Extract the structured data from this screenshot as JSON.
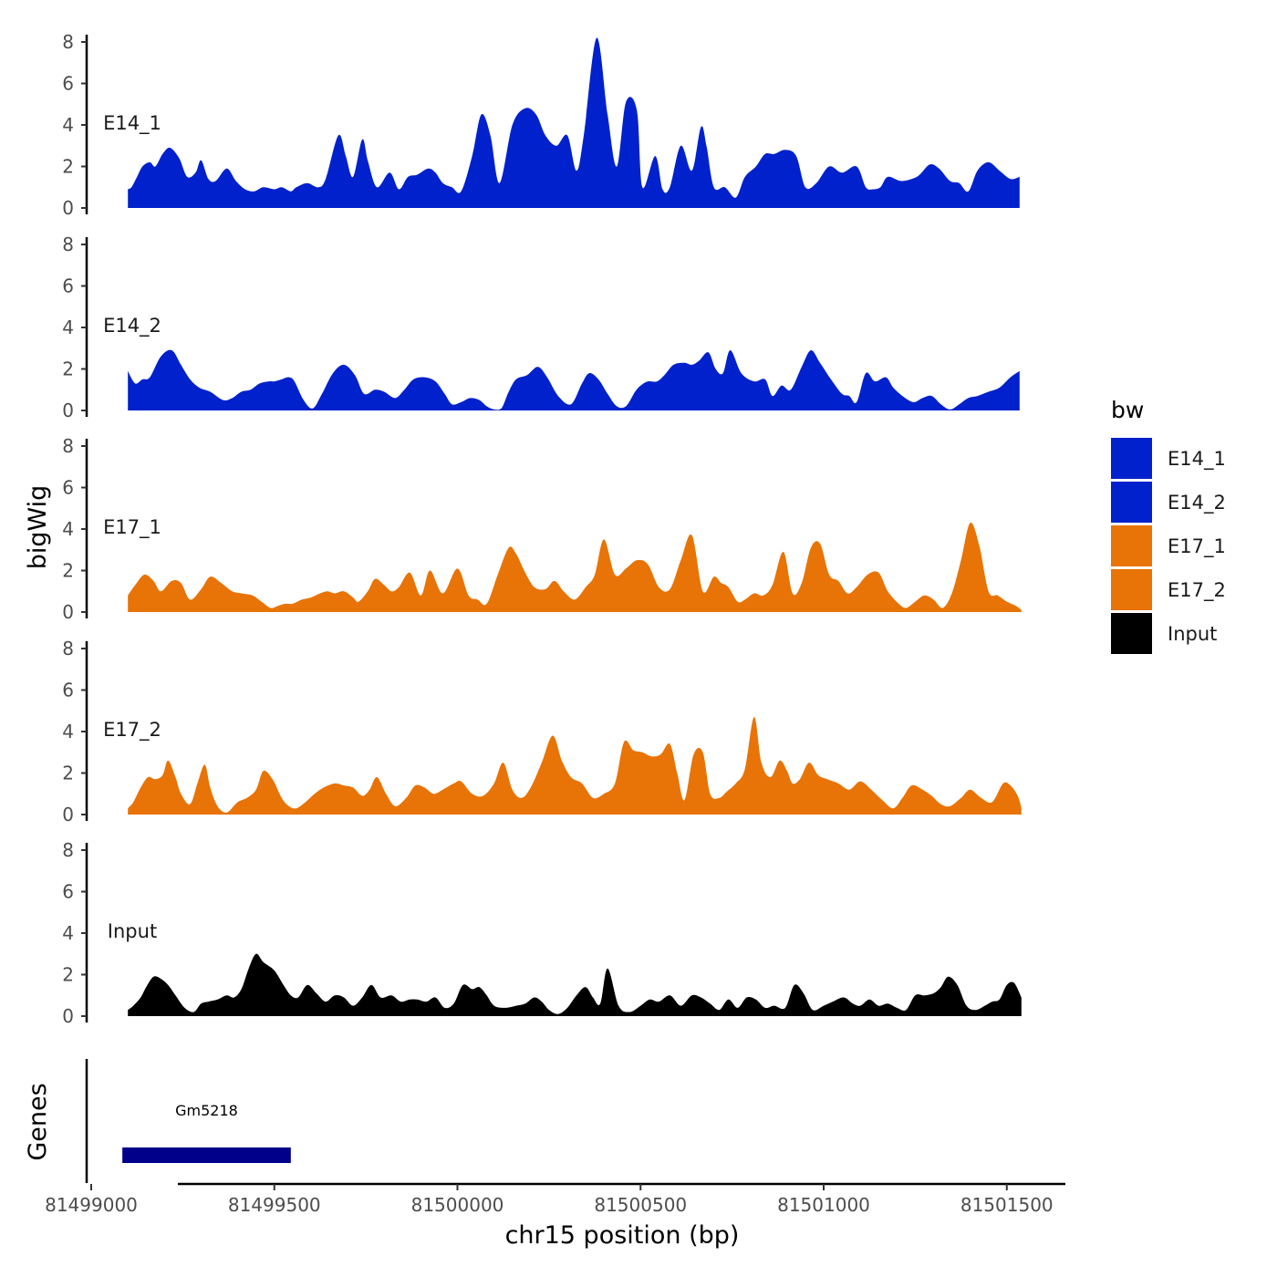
{
  "chart_data": {
    "type": "area",
    "ylabel": "bigWig",
    "xlabel": "chr15 position (bp)",
    "ylim": [
      0,
      8
    ],
    "yticks": [
      0,
      2,
      4,
      6,
      8
    ],
    "xlim": [
      81498990,
      81501660
    ],
    "xticks": [
      81499000,
      81499500,
      81500000,
      81500500,
      81501000,
      81501500
    ],
    "xtick_labels": [
      "81499000",
      "81499500",
      "81500000",
      "81500500",
      "81501000",
      "81501500"
    ],
    "legend": {
      "title": "bw",
      "position": "right",
      "entries": [
        {
          "label": "E14_1",
          "color": "#0021CC"
        },
        {
          "label": "E14_2",
          "color": "#0021CC"
        },
        {
          "label": "E17_1",
          "color": "#E87306"
        },
        {
          "label": "E17_2",
          "color": "#E87306"
        },
        {
          "label": "Input",
          "color": "#000000"
        }
      ]
    },
    "tracks": [
      {
        "name": "E14_1",
        "color": "#0021CC",
        "x": [
          81499100,
          81499110,
          81499125,
          81499140,
          81499160,
          81499175,
          81499195,
          81499215,
          81499240,
          81499262,
          81499285,
          81499300,
          81499320,
          81499340,
          81499370,
          81499395,
          81499420,
          81499445,
          81499470,
          81499500,
          81499520,
          81499545,
          81499560,
          81499590,
          81499620,
          81499640,
          81499675,
          81499695,
          81499715,
          81499740,
          81499755,
          81499780,
          81499815,
          81499840,
          81499865,
          81499890,
          81499920,
          81499940,
          81499960,
          81499985,
          81500010,
          81500040,
          81500065,
          81500090,
          81500115,
          81500150,
          81500185,
          81500215,
          81500240,
          81500270,
          81500300,
          81500325,
          81500345,
          81500380,
          81500410,
          81500435,
          81500460,
          81500490,
          81500505,
          81500540,
          81500560,
          81500580,
          81500610,
          81500640,
          81500665,
          81500680,
          81500700,
          81500730,
          81500760,
          81500785,
          81500815,
          81500840,
          81500865,
          81500895,
          81500925,
          81500950,
          81500980,
          81501015,
          81501050,
          81501090,
          81501115,
          81501135,
          81501155,
          81501175,
          81501210,
          81501240,
          81501262,
          81501290,
          81501315,
          81501345,
          81501370,
          81501395,
          81501420,
          81501450,
          81501480,
          81501510,
          81501535
        ],
        "values": [
          0.9,
          1.0,
          1.5,
          2.0,
          2.2,
          2.0,
          2.6,
          2.9,
          2.4,
          1.5,
          1.7,
          2.3,
          1.4,
          1.3,
          1.9,
          1.3,
          0.9,
          0.8,
          1.0,
          0.9,
          1.0,
          0.8,
          1.0,
          1.2,
          1.0,
          1.4,
          3.5,
          2.5,
          1.5,
          3.3,
          2.3,
          1.0,
          1.7,
          0.9,
          1.5,
          1.6,
          1.9,
          1.7,
          1.2,
          1.0,
          0.8,
          2.5,
          4.5,
          3.5,
          1.2,
          4.0,
          4.8,
          4.5,
          3.5,
          3.0,
          3.5,
          1.8,
          3.5,
          8.2,
          4.5,
          2.0,
          5.1,
          4.7,
          1.0,
          2.5,
          0.9,
          1.0,
          3.0,
          1.8,
          3.9,
          3.0,
          1.0,
          1.0,
          0.5,
          1.5,
          2.0,
          2.6,
          2.6,
          2.8,
          2.5,
          1.0,
          1.2,
          2.0,
          1.7,
          2.0,
          1.0,
          0.9,
          1.0,
          1.5,
          1.3,
          1.4,
          1.6,
          2.1,
          1.9,
          1.3,
          1.2,
          0.8,
          1.8,
          2.2,
          1.8,
          1.4,
          1.5
        ]
      },
      {
        "name": "E14_2",
        "color": "#0021CC",
        "x": [
          81499100,
          81499120,
          81499140,
          81499160,
          81499190,
          81499220,
          81499245,
          81499270,
          81499295,
          81499325,
          81499360,
          81499385,
          81499410,
          81499435,
          81499460,
          81499485,
          81499500,
          81499520,
          81499540,
          81499555,
          81499580,
          81499605,
          81499630,
          81499660,
          81499690,
          81499720,
          81499745,
          81499775,
          81499800,
          81499830,
          81499855,
          81499880,
          81499910,
          81499940,
          81499965,
          81499985,
          81500010,
          81500035,
          81500060,
          81500080,
          81500100,
          81500120,
          81500140,
          81500160,
          81500190,
          81500220,
          81500245,
          81500275,
          81500310,
          81500340,
          81500360,
          81500385,
          81500410,
          81500435,
          81500460,
          81500485,
          81500500,
          81500520,
          81500545,
          81500565,
          81500590,
          81500620,
          81500640,
          81500660,
          81500685,
          81500705,
          81500725,
          81500745,
          81500775,
          81500810,
          81500840,
          81500860,
          81500885,
          81500910,
          81500940,
          81500965,
          81500990,
          81501020,
          81501050,
          81501070,
          81501090,
          81501115,
          81501140,
          81501170,
          81501190,
          81501215,
          81501245,
          81501270,
          81501295,
          81501320,
          81501345,
          81501370,
          81501395,
          81501420,
          81501450,
          81501480,
          81501510,
          81501535
        ],
        "values": [
          1.9,
          1.3,
          1.5,
          1.6,
          2.6,
          2.9,
          2.2,
          1.5,
          1.1,
          0.9,
          0.5,
          0.6,
          0.9,
          1.0,
          1.3,
          1.4,
          1.4,
          1.5,
          1.6,
          1.4,
          0.5,
          0.1,
          0.8,
          1.8,
          2.2,
          1.7,
          0.8,
          1.0,
          0.9,
          0.6,
          1.0,
          1.5,
          1.6,
          1.4,
          0.8,
          0.3,
          0.4,
          0.6,
          0.5,
          0.2,
          0.05,
          0.1,
          0.9,
          1.5,
          1.7,
          2.1,
          1.6,
          0.7,
          0.3,
          1.3,
          1.8,
          1.5,
          0.8,
          0.2,
          0.2,
          0.9,
          1.2,
          1.4,
          1.4,
          1.7,
          2.2,
          2.3,
          2.2,
          2.4,
          2.8,
          2.0,
          1.8,
          2.9,
          1.8,
          1.4,
          1.5,
          0.7,
          1.2,
          1.0,
          2.1,
          2.9,
          2.3,
          1.5,
          0.8,
          0.7,
          0.4,
          1.8,
          1.4,
          1.6,
          1.1,
          0.7,
          0.4,
          0.6,
          0.7,
          0.3,
          0.05,
          0.3,
          0.6,
          0.7,
          0.9,
          1.1,
          1.6,
          1.9
        ]
      },
      {
        "name": "E17_1",
        "color": "#E87306",
        "x": [
          81499100,
          81499120,
          81499145,
          81499170,
          81499190,
          81499220,
          81499245,
          81499270,
          81499300,
          81499325,
          81499355,
          81499385,
          81499410,
          81499440,
          81499465,
          81499490,
          81499510,
          81499530,
          81499550,
          81499575,
          81499600,
          81499625,
          81499645,
          81499665,
          81499690,
          81499715,
          81499730,
          81499755,
          81499775,
          81499800,
          81499820,
          81499840,
          81499870,
          81499900,
          81499925,
          81499960,
          81500000,
          81500030,
          81500055,
          81500080,
          81500110,
          81500140,
          81500160,
          81500185,
          81500210,
          81500240,
          81500265,
          81500290,
          81500320,
          81500350,
          81500375,
          81500400,
          81500430,
          81500460,
          81500490,
          81500520,
          81500550,
          81500580,
          81500610,
          81500640,
          81500670,
          81500700,
          81500720,
          81500740,
          81500765,
          81500785,
          81500810,
          81500835,
          81500860,
          81500890,
          81500915,
          81500940,
          81500965,
          81500990,
          81501015,
          81501040,
          81501065,
          81501090,
          81501120,
          81501150,
          81501175,
          81501205,
          81501225,
          81501250,
          81501275,
          81501300,
          81501325,
          81501350,
          81501375,
          81501400,
          81501425,
          81501450,
          81501475,
          81501500,
          81501525,
          81501540
        ],
        "values": [
          0.8,
          1.3,
          1.8,
          1.5,
          1.0,
          1.5,
          1.4,
          0.6,
          1.1,
          1.7,
          1.4,
          1.0,
          0.9,
          0.8,
          0.5,
          0.2,
          0.3,
          0.4,
          0.4,
          0.6,
          0.7,
          0.9,
          1.0,
          0.9,
          1.0,
          0.7,
          0.5,
          1.0,
          1.6,
          1.3,
          1.0,
          1.2,
          1.9,
          0.8,
          2.0,
          0.9,
          2.1,
          0.8,
          0.6,
          0.4,
          1.8,
          3.1,
          2.8,
          1.9,
          1.2,
          1.1,
          1.5,
          1.0,
          0.6,
          1.2,
          1.8,
          3.5,
          1.8,
          2.1,
          2.5,
          2.3,
          1.2,
          1.1,
          2.5,
          3.7,
          1.0,
          1.7,
          1.4,
          1.2,
          0.5,
          0.6,
          0.9,
          0.8,
          1.3,
          2.9,
          0.9,
          1.4,
          3.1,
          3.3,
          1.8,
          1.5,
          0.9,
          1.2,
          1.8,
          1.9,
          1.0,
          0.4,
          0.2,
          0.5,
          0.8,
          0.6,
          0.2,
          0.9,
          2.5,
          4.3,
          3.2,
          1.0,
          0.8,
          0.5,
          0.3,
          0.1
        ]
      },
      {
        "name": "E17_2",
        "color": "#E87306",
        "x": [
          81499100,
          81499115,
          81499135,
          81499155,
          81499175,
          81499195,
          81499210,
          81499230,
          81499245,
          81499270,
          81499290,
          81499310,
          81499325,
          81499345,
          81499370,
          81499400,
          81499425,
          81499450,
          81499470,
          81499495,
          81499520,
          81499540,
          81499560,
          81499585,
          81499610,
          81499635,
          81499665,
          81499690,
          81499715,
          81499740,
          81499760,
          81499780,
          81499805,
          81499830,
          81499860,
          81499885,
          81499910,
          81499935,
          81499960,
          81499990,
          81500010,
          81500040,
          81500070,
          81500100,
          81500125,
          81500150,
          81500175,
          81500200,
          81500230,
          81500260,
          81500285,
          81500310,
          81500340,
          81500370,
          81500400,
          81500430,
          81500455,
          81500480,
          81500505,
          81500530,
          81500555,
          81500580,
          81500600,
          81500620,
          81500645,
          81500670,
          81500690,
          81500715,
          81500735,
          81500760,
          81500785,
          81500810,
          81500830,
          81500855,
          81500880,
          81500900,
          81500915,
          81500935,
          81500960,
          81500985,
          81501010,
          81501040,
          81501070,
          81501100,
          81501130,
          81501160,
          81501190,
          81501215,
          81501240,
          81501270,
          81501295,
          81501320,
          81501345,
          81501375,
          81501400,
          81501430,
          81501460,
          81501490,
          81501510,
          81501530,
          81501540
        ],
        "values": [
          0.3,
          0.6,
          1.3,
          1.8,
          1.7,
          1.9,
          2.6,
          1.8,
          1.0,
          0.5,
          1.5,
          2.4,
          1.3,
          0.4,
          0.1,
          0.6,
          0.8,
          1.2,
          2.1,
          1.7,
          0.8,
          0.4,
          0.3,
          0.6,
          1.0,
          1.3,
          1.5,
          1.4,
          1.3,
          0.9,
          1.2,
          1.8,
          1.0,
          0.4,
          0.8,
          1.4,
          1.3,
          1.0,
          1.2,
          1.5,
          1.6,
          1.0,
          0.9,
          1.5,
          2.5,
          1.2,
          0.8,
          1.3,
          2.5,
          3.8,
          2.6,
          1.8,
          1.5,
          0.8,
          1.0,
          1.5,
          3.5,
          3.1,
          3.0,
          2.8,
          2.9,
          3.4,
          2.0,
          0.7,
          2.9,
          3.0,
          1.0,
          0.8,
          1.1,
          1.5,
          2.2,
          4.7,
          2.5,
          1.8,
          2.6,
          2.1,
          1.5,
          1.7,
          2.5,
          1.9,
          1.7,
          1.5,
          1.2,
          1.6,
          1.2,
          0.7,
          0.3,
          0.8,
          1.4,
          1.2,
          0.9,
          0.5,
          0.4,
          0.8,
          1.2,
          0.8,
          0.6,
          1.5,
          1.4,
          0.9,
          0.3
        ]
      },
      {
        "name": "Input",
        "color": "#000000",
        "x": [
          81499100,
          81499115,
          81499135,
          81499150,
          81499170,
          81499190,
          81499210,
          81499230,
          81499255,
          81499280,
          81499300,
          81499320,
          81499345,
          81499370,
          81499390,
          81499410,
          81499430,
          81499450,
          81499470,
          81499500,
          81499525,
          81499545,
          81499565,
          81499590,
          81499615,
          81499640,
          81499665,
          81499690,
          81499715,
          81499740,
          81499765,
          81499790,
          81499820,
          81499845,
          81499870,
          81499890,
          81499915,
          81499940,
          81499965,
          81499990,
          81500015,
          81500040,
          81500060,
          81500080,
          81500100,
          81500130,
          81500160,
          81500185,
          81500210,
          81500230,
          81500250,
          81500275,
          81500300,
          81500325,
          81500350,
          81500370,
          81500390,
          81500410,
          81500440,
          81500470,
          81500500,
          81500525,
          81500550,
          81500580,
          81500610,
          81500640,
          81500665,
          81500690,
          81500715,
          81500740,
          81500765,
          81500790,
          81500815,
          81500840,
          81500865,
          81500895,
          81500920,
          81500945,
          81500970,
          81501000,
          81501025,
          81501055,
          81501080,
          81501100,
          81501125,
          81501150,
          81501175,
          81501200,
          81501225,
          81501250,
          81501275,
          81501300,
          81501320,
          81501340,
          81501365,
          81501390,
          81501415,
          81501440,
          81501460,
          81501480,
          81501500,
          81501520,
          81501540
        ],
        "values": [
          0.3,
          0.5,
          0.9,
          1.4,
          1.9,
          1.8,
          1.5,
          1.0,
          0.4,
          0.2,
          0.6,
          0.7,
          0.8,
          1.0,
          0.9,
          1.3,
          2.3,
          3.0,
          2.6,
          2.2,
          1.5,
          1.0,
          0.9,
          1.5,
          1.1,
          0.7,
          1.0,
          0.9,
          0.5,
          0.9,
          1.5,
          0.9,
          1.0,
          0.7,
          0.8,
          0.8,
          0.7,
          0.9,
          0.4,
          0.6,
          1.5,
          1.3,
          1.4,
          1.0,
          0.5,
          0.4,
          0.5,
          0.6,
          0.9,
          0.7,
          0.3,
          0.1,
          0.4,
          1.0,
          1.4,
          0.9,
          0.6,
          2.3,
          0.5,
          0.2,
          0.5,
          0.8,
          0.7,
          1.0,
          0.5,
          1.0,
          0.9,
          0.6,
          0.3,
          0.8,
          0.4,
          0.9,
          0.8,
          0.4,
          0.5,
          0.4,
          1.5,
          1.1,
          0.3,
          0.5,
          0.7,
          0.9,
          0.6,
          0.5,
          0.8,
          0.5,
          0.6,
          0.4,
          0.3,
          1.0,
          1.0,
          1.1,
          1.4,
          1.9,
          1.5,
          0.5,
          0.3,
          0.5,
          0.7,
          0.8,
          1.5,
          1.6,
          0.9
        ]
      }
    ],
    "genes": {
      "title": "Genes",
      "features": [
        {
          "name": "Gm5218",
          "start": 81499085,
          "end": 81499545,
          "color": "#00008B"
        }
      ]
    }
  }
}
